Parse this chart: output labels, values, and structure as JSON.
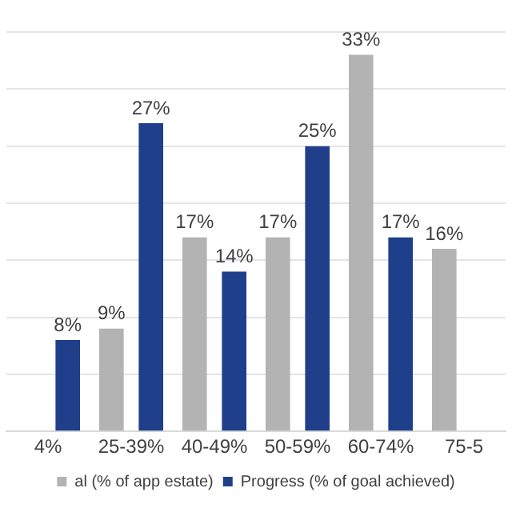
{
  "chart_data": {
    "type": "bar",
    "categories": [
      "4%",
      "25-39%",
      "40-49%",
      "50-59%",
      "60-74%",
      "75-5"
    ],
    "series": [
      {
        "name": "al (% of app estate)",
        "color": "#b3b3b3",
        "values": [
          null,
          9,
          17,
          17,
          33,
          16
        ],
        "value_labels": [
          null,
          "9%",
          "17%",
          "17%",
          "33%",
          "16%"
        ]
      },
      {
        "name": "Progress (% of goal achieved)",
        "color": "#1f3f8a",
        "values": [
          8,
          27,
          14,
          25,
          17,
          null
        ],
        "value_labels": [
          "8%",
          "27%",
          "14%",
          "25%",
          "17%",
          null
        ]
      }
    ],
    "tick_labels": "x",
    "grid": "y",
    "legend": "bottom"
  }
}
